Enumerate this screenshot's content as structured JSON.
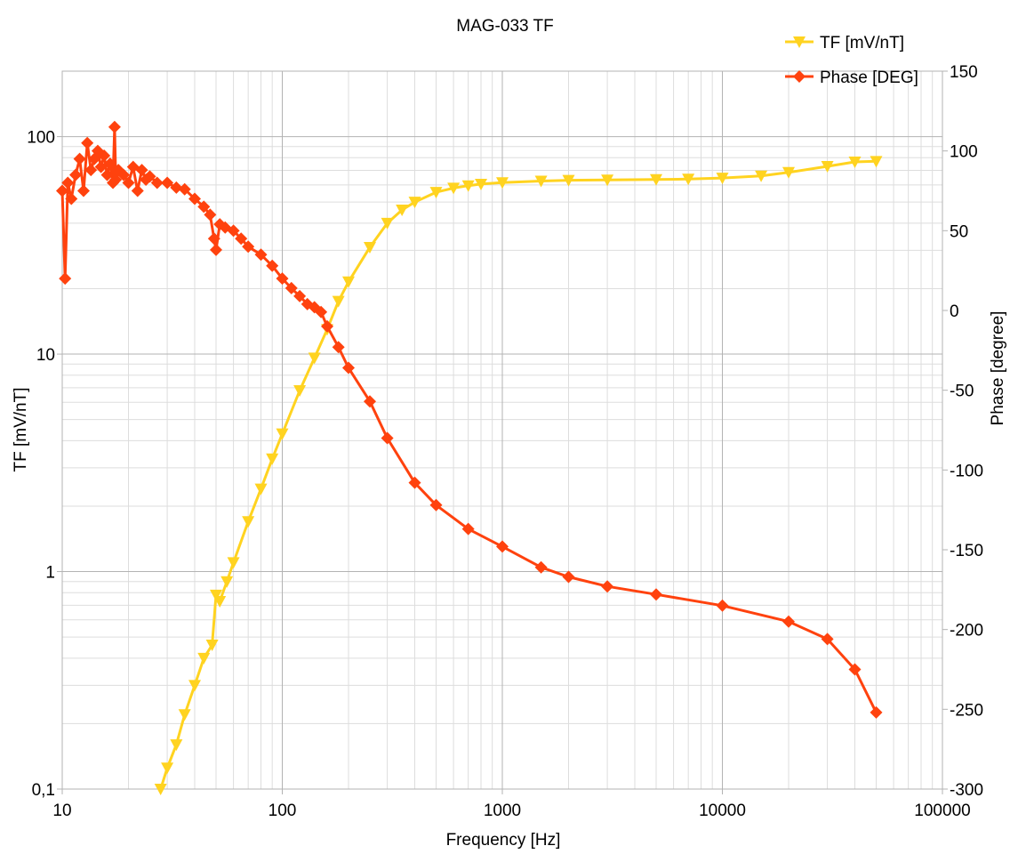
{
  "chart_data": {
    "type": "line",
    "title": "MAG-033 TF",
    "xlabel": "Frequency [Hz]",
    "ylabel": "TF [mV/nT]",
    "y2label": "Phase [degree]",
    "x_scale": "log",
    "y_scale": "log",
    "xlim": [
      10,
      100000
    ],
    "ylim": [
      0.1,
      200
    ],
    "y2lim": [
      -300,
      150
    ],
    "grid": true,
    "legend_position": "top-right",
    "x_tick_labels": [
      "10",
      "100",
      "1000",
      "10000",
      "100000"
    ],
    "y_tick_labels": [
      "0,1",
      "1",
      "10",
      "100"
    ],
    "y2_tick_labels": [
      "150",
      "100",
      "50",
      "0",
      "-50",
      "-100",
      "-150",
      "-200",
      "-250",
      "-300"
    ],
    "series": [
      {
        "name": "TF [mV/nT]",
        "axis": "left",
        "color": "#ffd320",
        "marker": "triangle-down",
        "x": [
          28,
          30,
          33,
          36,
          40,
          44,
          48,
          50,
          52,
          56,
          60,
          70,
          80,
          90,
          100,
          120,
          140,
          160,
          180,
          200,
          250,
          300,
          350,
          400,
          500,
          600,
          700,
          800,
          1000,
          1500,
          2000,
          3000,
          5000,
          7000,
          10000,
          15000,
          20000,
          30000,
          40000,
          50000
        ],
        "y": [
          0.1,
          0.125,
          0.16,
          0.22,
          0.3,
          0.4,
          0.46,
          0.78,
          0.73,
          0.9,
          1.1,
          1.7,
          2.4,
          3.3,
          4.3,
          6.8,
          9.6,
          13,
          17.5,
          21.5,
          31,
          40,
          46,
          50,
          55.5,
          58,
          59.5,
          60.5,
          61.5,
          62.5,
          63,
          63.2,
          63.5,
          63.8,
          64.5,
          66,
          68.5,
          73,
          76.5,
          77
        ]
      },
      {
        "name": "Phase [DEG]",
        "axis": "right",
        "color": "#ff420e",
        "marker": "diamond",
        "x": [
          10,
          10.3,
          10.6,
          11,
          11.5,
          12,
          12.5,
          13,
          13.5,
          14,
          14.5,
          15,
          15.5,
          16,
          16.5,
          17,
          17.3,
          17.5,
          18,
          19,
          20,
          21,
          22,
          23,
          24,
          25,
          27,
          30,
          33,
          36,
          40,
          44,
          47,
          49,
          50,
          52,
          55,
          60,
          65,
          70,
          80,
          90,
          100,
          110,
          120,
          130,
          140,
          150,
          160,
          180,
          200,
          250,
          300,
          400,
          500,
          700,
          1000,
          1500,
          2000,
          3000,
          5000,
          10000,
          20000,
          30000,
          40000,
          50000
        ],
        "y": [
          75,
          20,
          80,
          70,
          85,
          95,
          75,
          105,
          88,
          95,
          100,
          90,
          97,
          85,
          92,
          80,
          115,
          82,
          88,
          85,
          80,
          90,
          75,
          88,
          82,
          84,
          80,
          80,
          77,
          76,
          70,
          65,
          60,
          45,
          38,
          54,
          52,
          50,
          45,
          40,
          35,
          28,
          20,
          14,
          9,
          4,
          2,
          -1,
          -10,
          -23,
          -36,
          -57,
          -80,
          -108,
          -122,
          -137,
          -148,
          -161,
          -167,
          -173,
          -178,
          -185,
          -195,
          -206,
          -225,
          -252
        ]
      }
    ]
  }
}
